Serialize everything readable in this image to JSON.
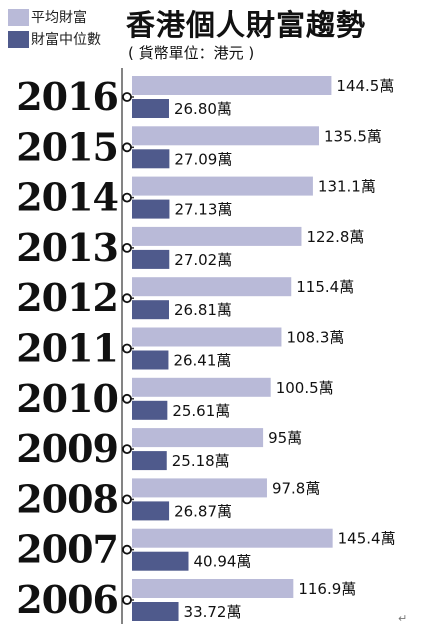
{
  "legend": {
    "mean_label": "平均財富",
    "median_label": "財富中位數"
  },
  "header": {
    "title": "香港個人財富趨勢",
    "subtitle": "( 貨幣單位：港元 )"
  },
  "colors": {
    "mean_bar": "#b9bad8",
    "median_bar": "#4f5a8c",
    "year_text": "#111111",
    "axis_line": "#333333"
  },
  "chart_data": {
    "type": "bar",
    "orientation": "horizontal",
    "title": "香港個人財富趨勢",
    "subtitle": "( 貨幣單位：港元 )",
    "unit_suffix": "萬",
    "categories": [
      "2016",
      "2015",
      "2014",
      "2013",
      "2012",
      "2011",
      "2010",
      "2009",
      "2008",
      "2007",
      "2006"
    ],
    "series": [
      {
        "name": "平均財富",
        "values": [
          144.5,
          135.5,
          131.1,
          122.8,
          115.4,
          108.3,
          100.5,
          95,
          97.8,
          145.4,
          116.9
        ],
        "labels": [
          "144.5萬",
          "135.5萬",
          "131.1萬",
          "122.8萬",
          "115.4萬",
          "108.3萬",
          "100.5萬",
          "95萬",
          "97.8萬",
          "145.4萬",
          "116.9萬"
        ]
      },
      {
        "name": "財富中位數",
        "values": [
          26.8,
          27.09,
          27.13,
          27.02,
          26.81,
          26.41,
          25.61,
          25.18,
          26.87,
          40.94,
          33.72
        ],
        "labels": [
          "26.80萬",
          "27.09萬",
          "27.13萬",
          "27.02萬",
          "26.81萬",
          "26.41萬",
          "25.61萬",
          "25.18萬",
          "26.87萬",
          "40.94萬",
          "33.72萬"
        ]
      }
    ]
  },
  "footer": {
    "return_mark": "↵"
  }
}
